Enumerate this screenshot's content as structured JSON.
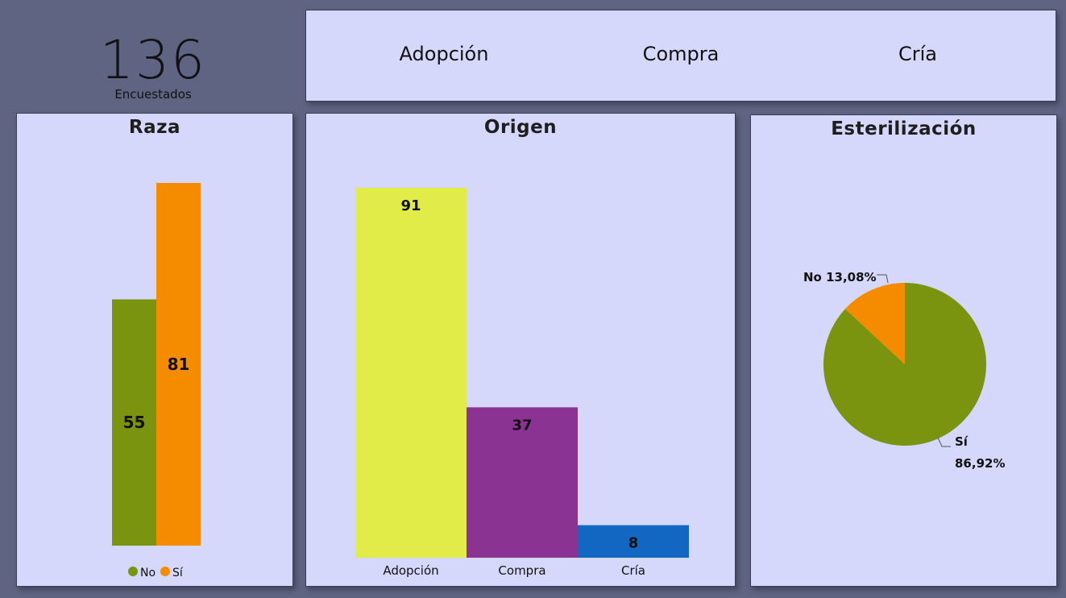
{
  "kpi": {
    "value": "136",
    "label": "Encuestados"
  },
  "slicer": {
    "items": [
      "Adopción",
      "Compra",
      "Cría"
    ]
  },
  "colors": {
    "no": "#7a9410",
    "si": "#f58c00",
    "adopcion": "#e1ec48",
    "compra": "#8a3392",
    "cria": "#1167c1"
  },
  "chart_data": [
    {
      "type": "bar",
      "title": "Raza",
      "categories": [
        "No",
        "Sí"
      ],
      "values": [
        55,
        81
      ],
      "legend": {
        "placement": "bottom",
        "items": [
          "No",
          "Sí"
        ]
      },
      "ylim": [
        0,
        81
      ],
      "grid": false
    },
    {
      "type": "bar",
      "title": "Origen",
      "categories": [
        "Adopción",
        "Compra",
        "Cría"
      ],
      "values": [
        91,
        37,
        8
      ],
      "ylim": [
        0,
        91
      ],
      "grid": false
    },
    {
      "type": "pie",
      "title": "Esterilización",
      "categories": [
        "No",
        "Sí"
      ],
      "values": [
        13.08,
        86.92
      ],
      "labels": [
        "No 13,08%",
        "Sí",
        "86,92%"
      ]
    }
  ]
}
